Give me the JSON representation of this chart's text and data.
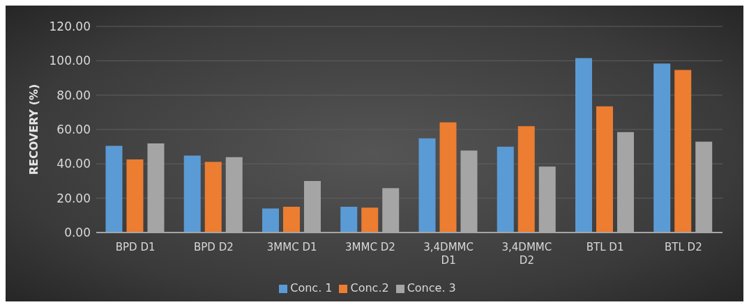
{
  "chart_data": {
    "type": "bar",
    "ylabel": "RECOVERY (%)",
    "categories": [
      "BPD D1",
      "BPD D2",
      "3MMC D1",
      "3MMC D2",
      "3,4DMMC D1",
      "3,4DMMC D2",
      "BTL D1",
      "BTL D2"
    ],
    "series": [
      {
        "name": "Conc. 1",
        "color": "#5b9bd5",
        "values": [
          50.5,
          44.8,
          14.0,
          15.0,
          54.8,
          50.0,
          101.6,
          98.4
        ]
      },
      {
        "name": "Conc.2",
        "color": "#ed7d31",
        "values": [
          42.6,
          41.1,
          15.0,
          14.5,
          64.2,
          61.9,
          73.5,
          94.7
        ]
      },
      {
        "name": "Conce. 3",
        "color": "#a5a5a5",
        "values": [
          51.9,
          43.9,
          30.0,
          25.8,
          47.7,
          38.4,
          58.5,
          52.9
        ]
      }
    ],
    "ylim": [
      0,
      120
    ],
    "yticks": [
      {
        "value": 0,
        "label": "0.00"
      },
      {
        "value": 20,
        "label": "20.00"
      },
      {
        "value": 40,
        "label": "40.00"
      },
      {
        "value": 60,
        "label": "60.00"
      },
      {
        "value": 80,
        "label": "80.00"
      },
      {
        "value": 100,
        "label": "100.00"
      },
      {
        "value": 120,
        "label": "120.00"
      }
    ],
    "grid": "y",
    "legend": "bottom"
  }
}
